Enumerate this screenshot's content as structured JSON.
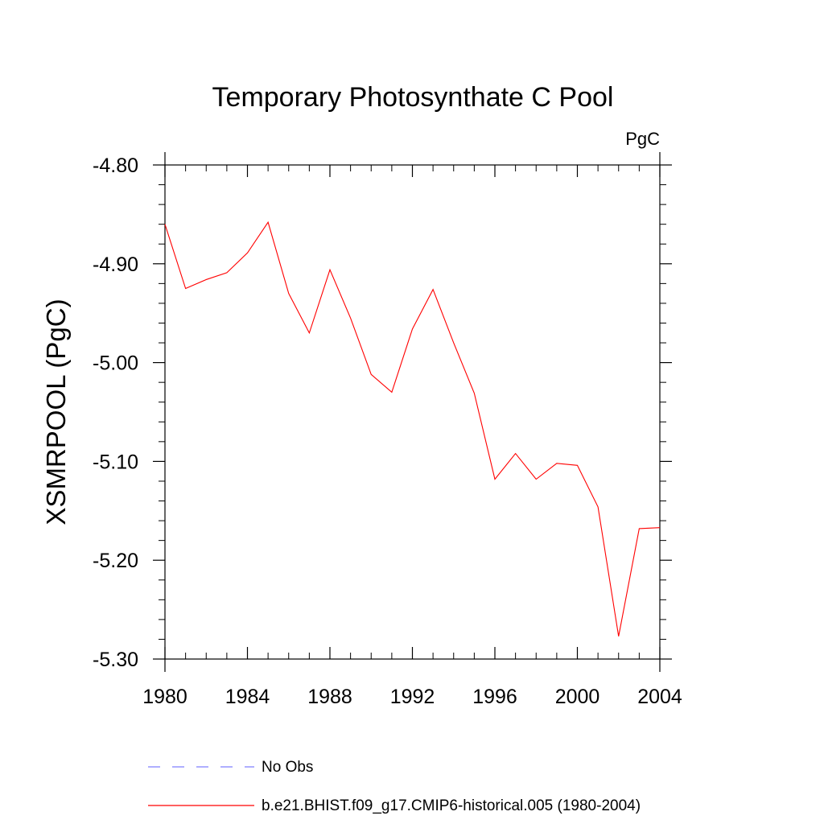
{
  "chart_data": {
    "type": "line",
    "title": "Temporary Photosynthate C Pool",
    "units": "PgC",
    "ylabel": "XSMRPOOL  (PgC)",
    "xlabel": "",
    "xlim": [
      1980,
      2004
    ],
    "ylim": [
      -5.3,
      -4.8
    ],
    "x_ticks": [
      1980,
      1984,
      1988,
      1992,
      1996,
      2000,
      2004
    ],
    "x_tick_labels": [
      "1980",
      "1984",
      "1988",
      "1992",
      "1996",
      "2000",
      "2004"
    ],
    "y_ticks": [
      -4.8,
      -4.9,
      -5.0,
      -5.1,
      -5.2,
      -5.3
    ],
    "y_tick_labels": [
      "-4.80",
      "-4.90",
      "-5.00",
      "-5.10",
      "-5.20",
      "-5.30"
    ],
    "grid": false,
    "series": [
      {
        "name": "b.e21.BHIST.f09_g17.CMIP6-historical.005 (1980-2004)",
        "color": "#ff0000",
        "x": [
          1980,
          1981,
          1982,
          1983,
          1984,
          1985,
          1986,
          1987,
          1988,
          1989,
          1990,
          1991,
          1992,
          1993,
          1994,
          1995,
          1996,
          1997,
          1998,
          1999,
          2000,
          2001,
          2002,
          2003,
          2004
        ],
        "values": [
          -4.86,
          -4.925,
          -4.916,
          -4.909,
          -4.889,
          -4.858,
          -4.93,
          -4.97,
          -4.906,
          -4.955,
          -5.012,
          -5.03,
          -4.966,
          -4.926,
          -4.98,
          -5.031,
          -5.118,
          -5.092,
          -5.118,
          -5.102,
          -5.104,
          -5.146,
          -5.277,
          -5.168,
          -5.167
        ]
      }
    ],
    "legend": {
      "placement": "bottom",
      "entries": [
        {
          "label": "No Obs",
          "color": "#7f7fff",
          "style": "dashed"
        },
        {
          "label": "b.e21.BHIST.f09_g17.CMIP6-historical.005 (1980-2004)",
          "color": "#ff0000",
          "style": "solid"
        }
      ]
    }
  }
}
